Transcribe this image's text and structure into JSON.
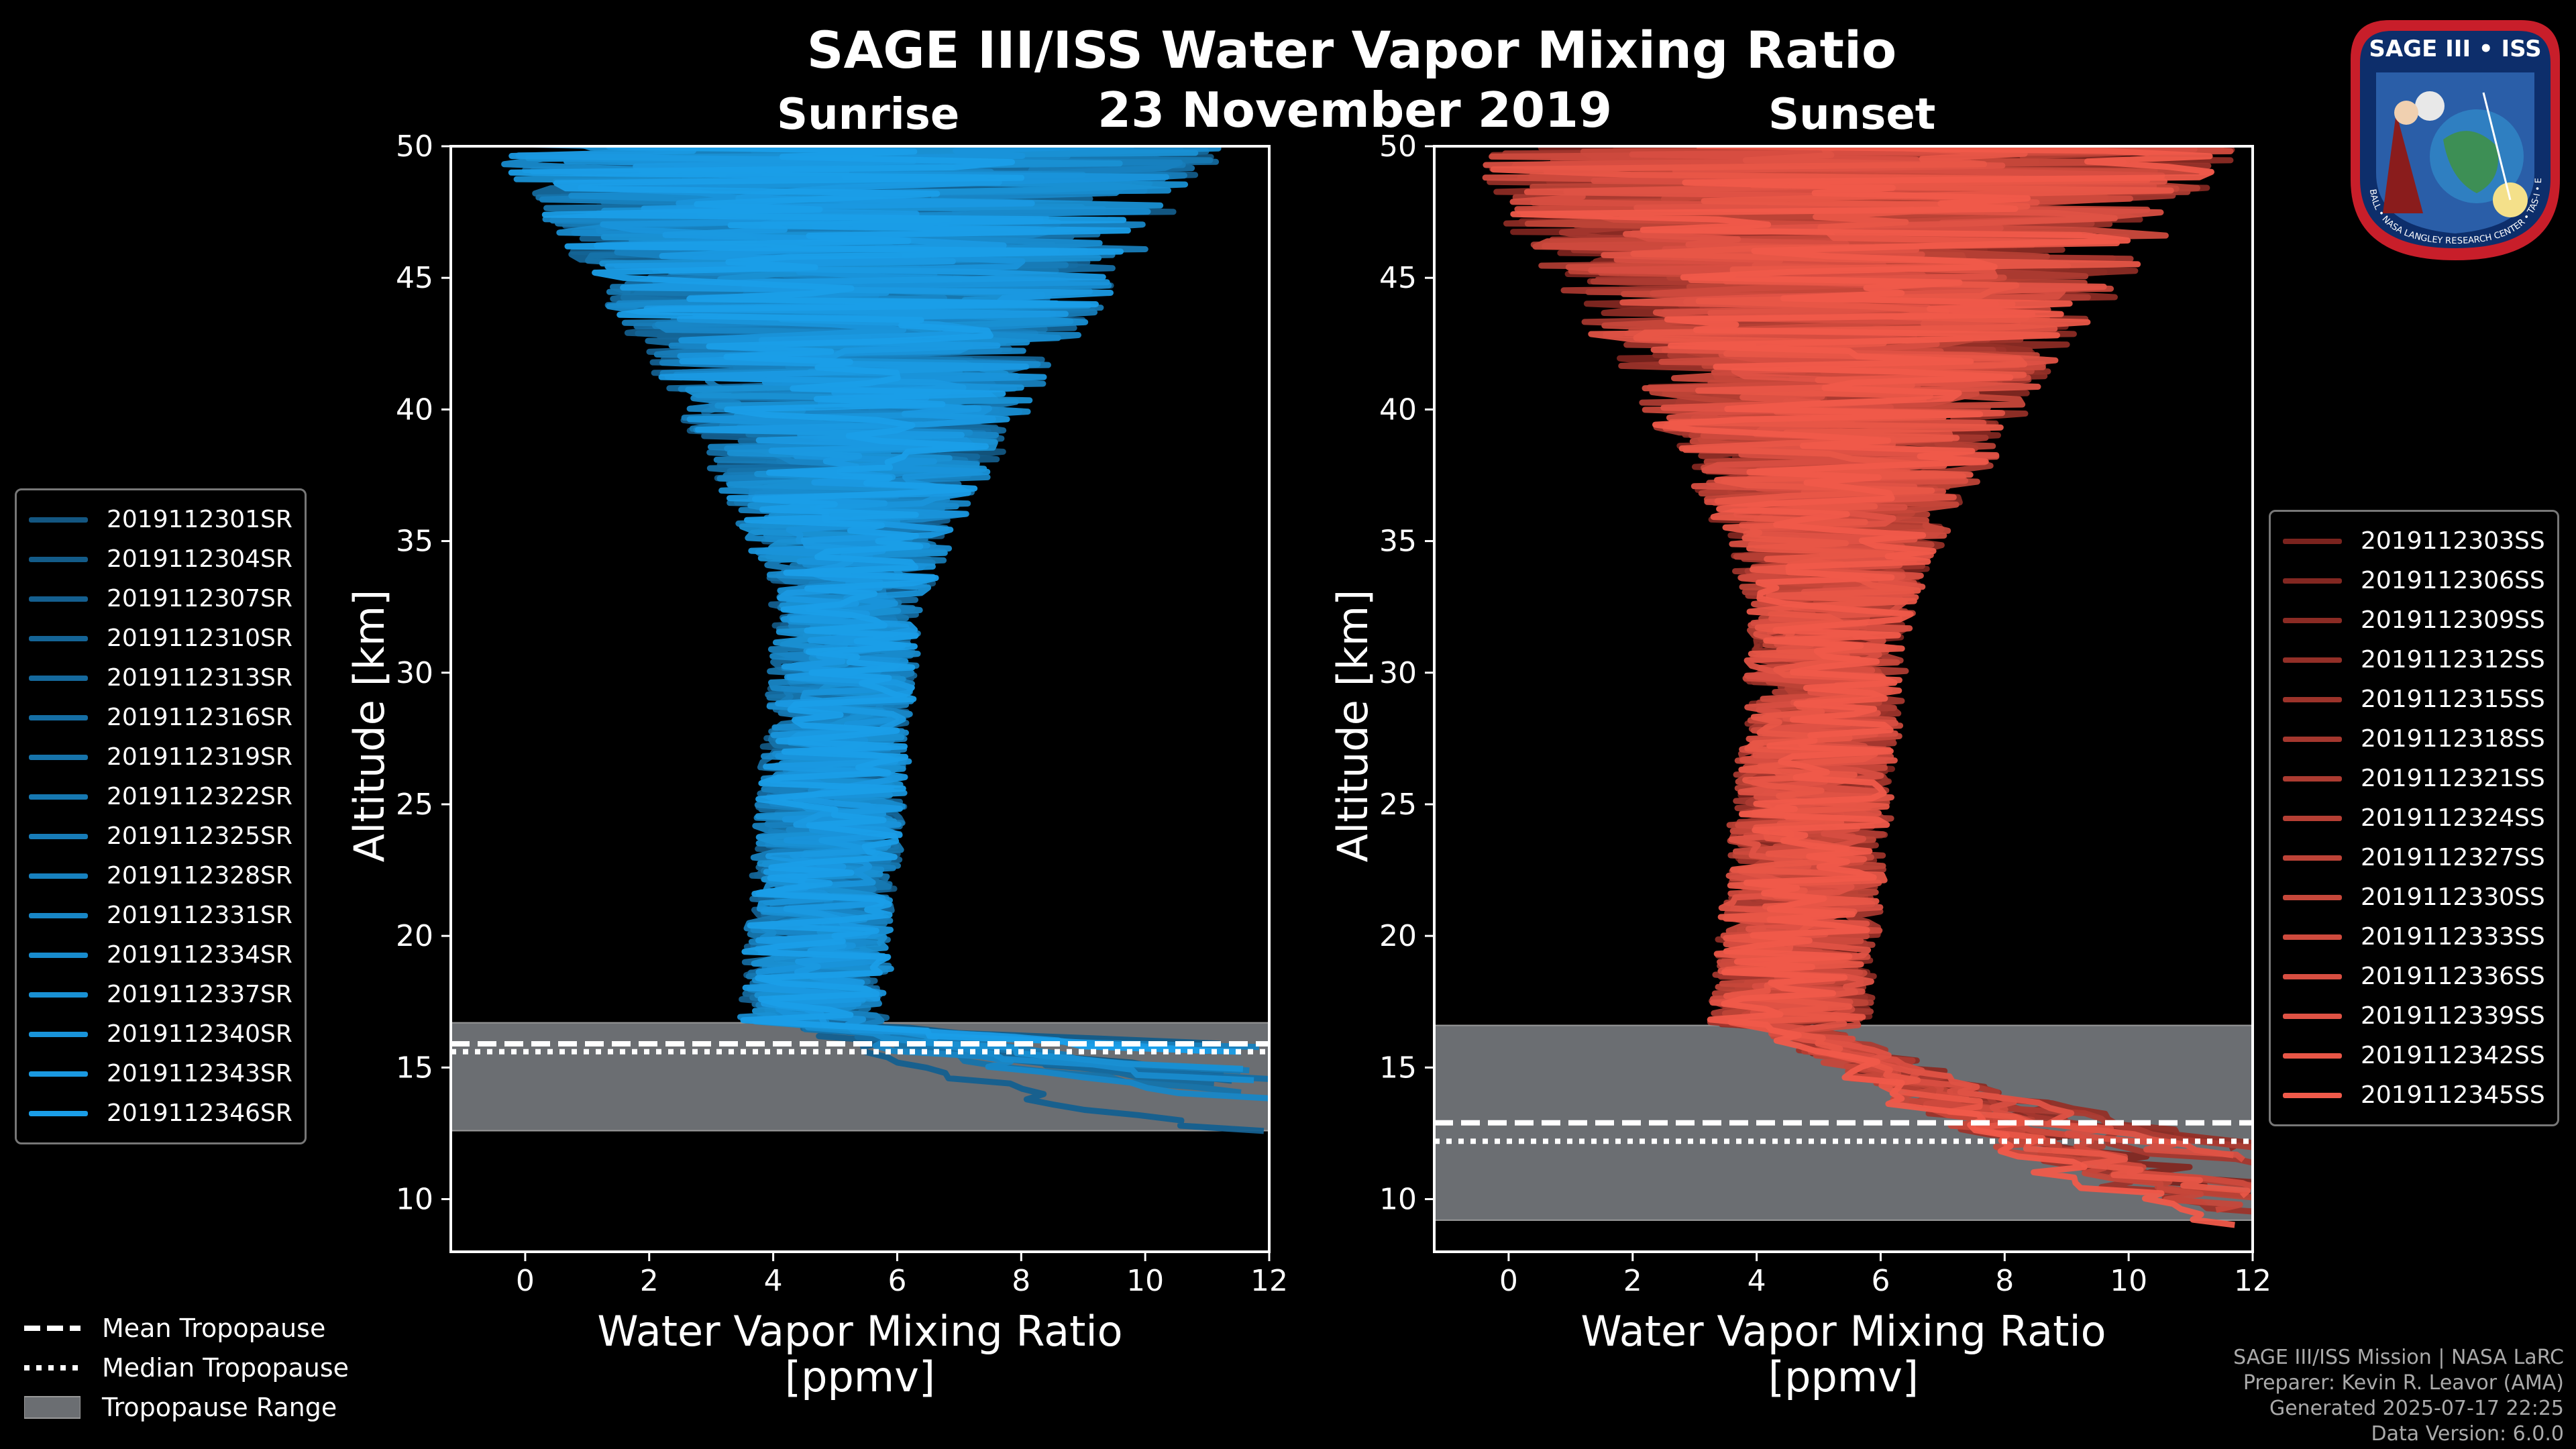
{
  "title": "SAGE III/ISS Water Vapor Mixing Ratio",
  "date": "23 November 2019",
  "sunrise_label": "Sunrise",
  "sunset_label": "Sunset",
  "legend_sr": [
    "2019112301SR",
    "2019112304SR",
    "2019112307SR",
    "2019112310SR",
    "2019112313SR",
    "2019112316SR",
    "2019112319SR",
    "2019112322SR",
    "2019112325SR",
    "2019112328SR",
    "2019112331SR",
    "2019112334SR",
    "2019112337SR",
    "2019112340SR",
    "2019112343SR",
    "2019112346SR"
  ],
  "legend_ss": [
    "2019112303SS",
    "2019112306SS",
    "2019112309SS",
    "2019112312SS",
    "2019112315SS",
    "2019112318SS",
    "2019112321SS",
    "2019112324SS",
    "2019112327SS",
    "2019112330SS",
    "2019112333SS",
    "2019112336SS",
    "2019112339SS",
    "2019112342SS",
    "2019112345SS"
  ],
  "tropopause_legend": {
    "mean": "Mean Tropopause",
    "median": "Median Tropopause",
    "range": "Tropopause Range"
  },
  "footer": {
    "line1": "SAGE III/ISS Mission | NASA LaRC",
    "line2": "Preparer: Kevin R. Leavor (AMA)",
    "line3": "Generated 2025-07-17 22:25",
    "line4": "Data Version: 6.0.0"
  },
  "logo": {
    "title": "SAGE III • ISS",
    "ring": "BALL • NASA LANGLEY RESEARCH CENTER • TAS-I • ESA"
  },
  "colors": {
    "sr_dark": "#0f2f4a",
    "sr_bright": "#1a9ee8",
    "ss_dark": "#3a0606",
    "ss_bright": "#f05a4a",
    "trop_range": "#6b6e72"
  },
  "chart_data": [
    {
      "type": "line",
      "panel": "sunrise",
      "xlabel": "Water Vapor Mixing Ratio",
      "xunit": "[ppmv]",
      "ylabel": "Altitude [km]",
      "xlim": [
        -1.2,
        12
      ],
      "ylim": [
        8,
        50
      ],
      "xticks": [
        0,
        2,
        4,
        6,
        8,
        10,
        12
      ],
      "yticks": [
        10,
        15,
        20,
        25,
        30,
        35,
        40,
        45,
        50
      ],
      "tropopause": {
        "mean": 15.9,
        "median": 15.6,
        "range": [
          12.6,
          16.7
        ]
      },
      "profile_shape": {
        "low_alt": 12.5,
        "low_x": 11.5,
        "trop_x": 4.6,
        "mid_x": 5.2,
        "top_x": 5.4,
        "noise_mid": 1.2,
        "noise_top": 6.0
      }
    },
    {
      "type": "line",
      "panel": "sunset",
      "xlabel": "Water Vapor Mixing Ratio",
      "xunit": "[ppmv]",
      "ylabel": "Altitude [km]",
      "xlim": [
        -1.2,
        12
      ],
      "ylim": [
        8,
        50
      ],
      "xticks": [
        0,
        2,
        4,
        6,
        8,
        10,
        12
      ],
      "yticks": [
        10,
        15,
        20,
        25,
        30,
        35,
        40,
        45,
        50
      ],
      "tropopause": {
        "mean": 12.9,
        "median": 12.2,
        "range": [
          9.2,
          16.6
        ]
      },
      "profile_shape": {
        "low_alt": 9.0,
        "low_x": 12,
        "trop_x": 4.5,
        "mid_x": 5.2,
        "top_x": 5.4,
        "noise_mid": 1.3,
        "noise_top": 6.5
      }
    }
  ]
}
